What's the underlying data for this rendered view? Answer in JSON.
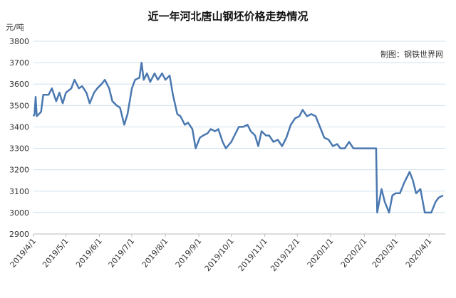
{
  "chart_data": {
    "type": "line",
    "title": "近一年河北唐山钢坯价格走势情况",
    "y_label": "元/吨",
    "annotation": "制图：钢铁世界网",
    "x": [
      "2019/4/1",
      "2019/4/2",
      "2019/4/3",
      "2019/4/4",
      "2019/4/8",
      "2019/4/10",
      "2019/4/15",
      "2019/4/18",
      "2019/4/22",
      "2019/4/25",
      "2019/4/28",
      "2019/5/1",
      "2019/5/6",
      "2019/5/9",
      "2019/5/13",
      "2019/5/16",
      "2019/5/20",
      "2019/5/23",
      "2019/5/27",
      "2019/5/30",
      "2019/6/3",
      "2019/6/6",
      "2019/6/10",
      "2019/6/13",
      "2019/6/17",
      "2019/6/20",
      "2019/6/24",
      "2019/6/27",
      "2019/7/1",
      "2019/7/4",
      "2019/7/8",
      "2019/7/10",
      "2019/7/12",
      "2019/7/15",
      "2019/7/18",
      "2019/7/22",
      "2019/7/25",
      "2019/7/29",
      "2019/8/1",
      "2019/8/5",
      "2019/8/8",
      "2019/8/12",
      "2019/8/15",
      "2019/8/19",
      "2019/8/22",
      "2019/8/26",
      "2019/8/29",
      "2019/9/2",
      "2019/9/5",
      "2019/9/9",
      "2019/9/12",
      "2019/9/16",
      "2019/9/19",
      "2019/9/23",
      "2019/9/26",
      "2019/10/1",
      "2019/10/8",
      "2019/10/12",
      "2019/10/16",
      "2019/10/19",
      "2019/10/23",
      "2019/10/26",
      "2019/10/29",
      "2019/11/2",
      "2019/11/5",
      "2019/11/9",
      "2019/11/13",
      "2019/11/17",
      "2019/11/21",
      "2019/11/25",
      "2019/11/29",
      "2019/12/3",
      "2019/12/6",
      "2019/12/10",
      "2019/12/14",
      "2019/12/18",
      "2019/12/22",
      "2019/12/26",
      "2019/12/30",
      "2020/1/3",
      "2020/1/7",
      "2020/1/10",
      "2020/1/14",
      "2020/1/18",
      "2020/1/22",
      "2020/2/1",
      "2020/2/12",
      "2020/2/13",
      "2020/2/17",
      "2020/2/20",
      "2020/2/24",
      "2020/2/27",
      "2020/3/1",
      "2020/3/5",
      "2020/3/9",
      "2020/3/14",
      "2020/3/17",
      "2020/3/20",
      "2020/3/24",
      "2020/3/28",
      "2020/4/3",
      "2020/4/7",
      "2020/4/10",
      "2020/4/14"
    ],
    "series": [
      {
        "name": "钢坯价格",
        "color": "#4a78b0",
        "values": [
          3450,
          3460,
          3540,
          3450,
          3470,
          3550,
          3550,
          3580,
          3520,
          3560,
          3510,
          3560,
          3580,
          3620,
          3580,
          3590,
          3560,
          3510,
          3560,
          3580,
          3600,
          3620,
          3580,
          3520,
          3500,
          3490,
          3410,
          3460,
          3580,
          3620,
          3630,
          3700,
          3620,
          3650,
          3610,
          3650,
          3620,
          3650,
          3620,
          3640,
          3550,
          3460,
          3450,
          3410,
          3420,
          3390,
          3300,
          3350,
          3360,
          3370,
          3390,
          3380,
          3390,
          3330,
          3300,
          3330,
          3400,
          3400,
          3410,
          3380,
          3360,
          3310,
          3380,
          3360,
          3360,
          3330,
          3340,
          3310,
          3350,
          3410,
          3440,
          3450,
          3480,
          3450,
          3460,
          3450,
          3400,
          3350,
          3340,
          3310,
          3320,
          3300,
          3300,
          3330,
          3300,
          3300,
          3300,
          3000,
          3110,
          3050,
          3000,
          3080,
          3090,
          3090,
          3140,
          3190,
          3150,
          3090,
          3110,
          3000,
          3000,
          3050,
          3070,
          3080
        ]
      }
    ],
    "xlim": [
      "2019/4/1",
      "2020/4/16"
    ],
    "xticks": [
      "2019/4/1",
      "2019/5/1",
      "2019/6/1",
      "2019/7/1",
      "2019/8/1",
      "2019/9/1",
      "2019/10/1",
      "2019/11/1",
      "2019/12/1",
      "2020/1/1",
      "2020/2/1",
      "2020/3/1",
      "2020/4/1"
    ],
    "ylim": [
      2900,
      3800
    ],
    "yticks": [
      2900,
      3000,
      3100,
      3200,
      3300,
      3400,
      3500,
      3600,
      3700,
      3800
    ],
    "grid": true
  }
}
